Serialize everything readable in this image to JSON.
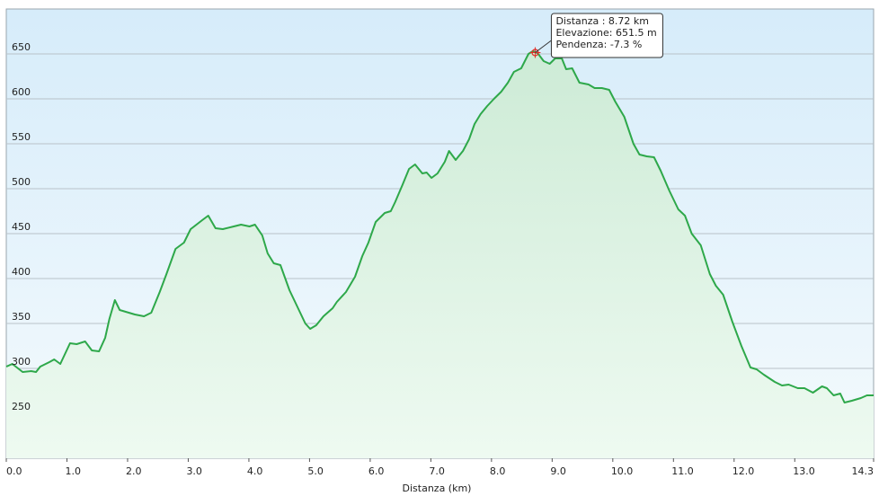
{
  "chart_data": {
    "type": "area",
    "x_label": "Distanza  (km)",
    "x": [
      0.0,
      0.1,
      0.27,
      0.41,
      0.49,
      0.56,
      0.71,
      0.79,
      0.89,
      0.96,
      1.05,
      1.16,
      1.3,
      1.41,
      1.53,
      1.63,
      1.7,
      1.79,
      1.87,
      1.97,
      2.12,
      2.27,
      2.39,
      2.53,
      2.64,
      2.79,
      2.93,
      3.04,
      3.23,
      3.33,
      3.45,
      3.57,
      3.75,
      3.87,
      4.01,
      4.1,
      4.22,
      4.31,
      4.41,
      4.52,
      4.67,
      4.79,
      4.93,
      5.01,
      5.11,
      5.23,
      5.38,
      5.45,
      5.6,
      5.75,
      5.87,
      5.97,
      6.09,
      6.24,
      6.34,
      6.41,
      6.53,
      6.64,
      6.74,
      6.86,
      6.93,
      7.01,
      7.11,
      7.23,
      7.3,
      7.41,
      7.53,
      7.63,
      7.72,
      7.82,
      7.93,
      8.04,
      8.16,
      8.27,
      8.37,
      8.49,
      8.61,
      8.68,
      8.76,
      8.86,
      8.96,
      9.05,
      9.16,
      9.23,
      9.33,
      9.45,
      9.6,
      9.7,
      9.82,
      9.94,
      10.04,
      10.19,
      10.34,
      10.44,
      10.56,
      10.68,
      10.79,
      10.93,
      11.08,
      11.19,
      11.3,
      11.45,
      11.6,
      11.7,
      11.82,
      11.97,
      12.12,
      12.27,
      12.37,
      12.49,
      12.67,
      12.79,
      12.9,
      13.05,
      13.16,
      13.3,
      13.45,
      13.53,
      13.64,
      13.75,
      13.82,
      13.94,
      14.09,
      14.19,
      14.3
    ],
    "series": [
      {
        "name": "Elevazione",
        "color": "#2ea84a",
        "values": [
          302,
          305,
          296,
          297,
          296,
          302,
          307,
          310,
          305,
          315,
          328,
          327,
          330,
          320,
          319,
          334,
          355,
          376,
          365,
          363,
          360,
          358,
          362,
          385,
          405,
          433,
          440,
          455,
          465,
          470,
          456,
          455,
          458,
          460,
          458,
          460,
          448,
          428,
          417,
          415,
          387,
          370,
          350,
          344,
          348,
          358,
          367,
          374,
          385,
          402,
          425,
          440,
          463,
          473,
          475,
          485,
          504,
          522,
          527,
          517,
          518,
          512,
          517,
          530,
          542,
          532,
          542,
          555,
          572,
          583,
          592,
          600,
          608,
          618,
          630,
          634,
          650,
          653,
          651,
          642,
          639,
          645,
          645,
          633,
          634,
          618,
          616,
          612,
          612,
          610,
          597,
          580,
          550,
          538,
          536,
          535,
          520,
          498,
          477,
          470,
          450,
          437,
          405,
          392,
          382,
          352,
          325,
          301,
          299,
          293,
          285,
          281,
          282,
          278,
          278,
          273,
          280,
          278,
          270,
          272,
          262,
          264,
          267,
          270,
          270
        ]
      }
    ],
    "xlim": [
      0,
      14.3
    ],
    "ylim": [
      200,
      700
    ],
    "xticks": [
      {
        "value": 0,
        "label": "0.0"
      },
      {
        "value": 1,
        "label": "1.0"
      },
      {
        "value": 2,
        "label": "2.0"
      },
      {
        "value": 3,
        "label": "3.0"
      },
      {
        "value": 4,
        "label": "4.0"
      },
      {
        "value": 5,
        "label": "5.0"
      },
      {
        "value": 6,
        "label": "6.0"
      },
      {
        "value": 7,
        "label": "7.0"
      },
      {
        "value": 8,
        "label": "8.0"
      },
      {
        "value": 9,
        "label": "9.0"
      },
      {
        "value": 10,
        "label": "10.0"
      },
      {
        "value": 11,
        "label": "11.0"
      },
      {
        "value": 12,
        "label": "12.0"
      },
      {
        "value": 13,
        "label": "13.0"
      },
      {
        "value": 14.3,
        "label": "14.3"
      }
    ],
    "yticks": [
      250,
      300,
      350,
      400,
      450,
      500,
      550,
      600,
      650
    ],
    "grid": true,
    "tooltip": {
      "x": 8.72,
      "y": 651.5,
      "lines": [
        "Distanza : 8.72 km",
        "Elevazione: 651.5 m",
        "Pendenza: -7.3 %"
      ]
    }
  }
}
